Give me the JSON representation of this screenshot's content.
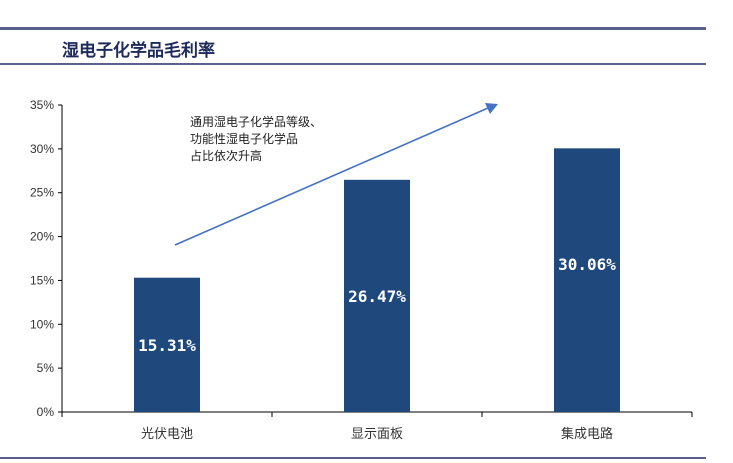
{
  "header": {
    "title": "湿电子化学品毛利率"
  },
  "annotation": {
    "lines": [
      "通用湿电子化学品等级、",
      "功能性湿电子化学品",
      "占比依次升高"
    ]
  },
  "chart_data": {
    "type": "bar",
    "categories": [
      "光伏电池",
      "显示面板",
      "集成电路"
    ],
    "values": [
      15.31,
      26.47,
      30.06
    ],
    "data_labels": [
      "15.31%",
      "26.47%",
      "30.06%"
    ],
    "ylim": [
      0,
      35
    ],
    "yticks": [
      "0%",
      "5%",
      "10%",
      "15%",
      "20%",
      "25%",
      "30%",
      "35%"
    ],
    "grid": false,
    "bar_color": "#1f497d",
    "arrow_color": "#4472c4"
  }
}
